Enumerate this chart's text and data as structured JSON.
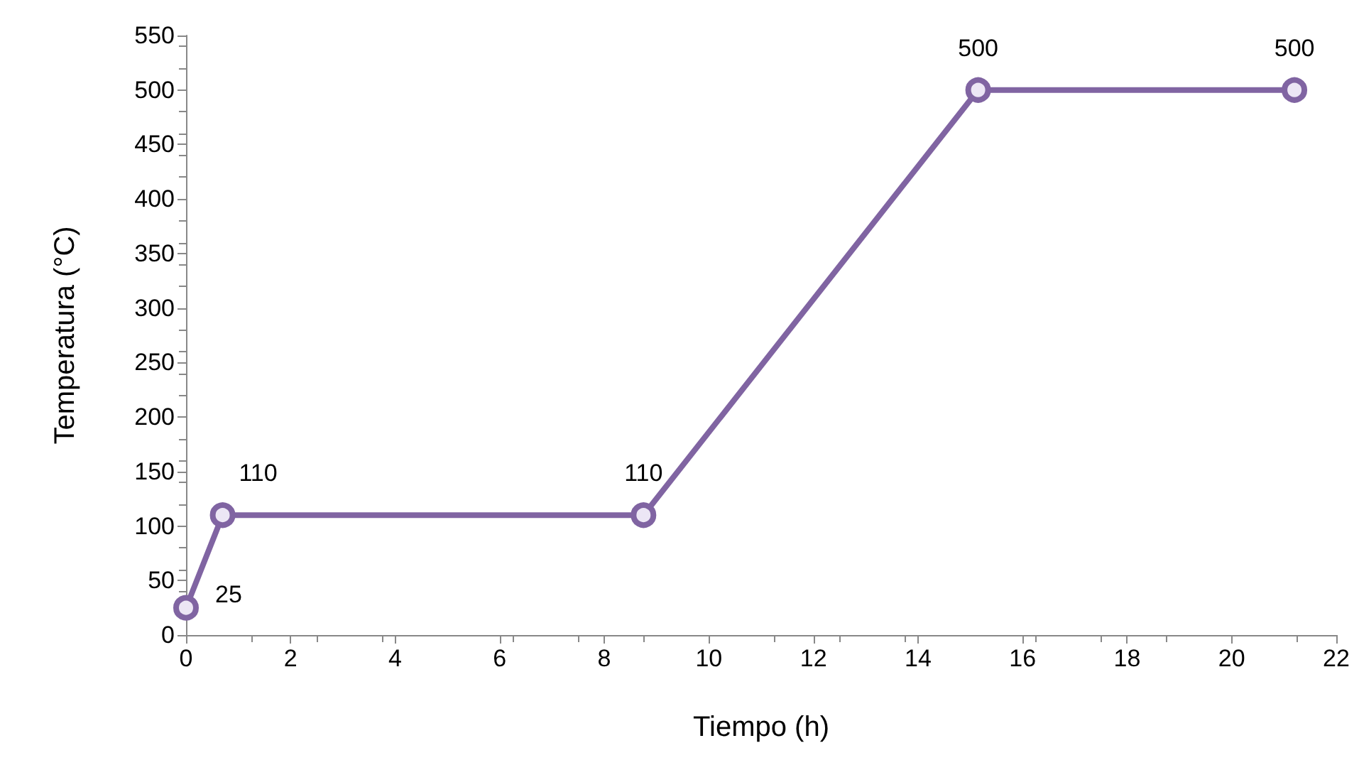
{
  "chart_data": {
    "type": "line",
    "xlabel": "Tiempo (h)",
    "ylabel": "Temperatura (°C)",
    "x": [
      0,
      0.7,
      8.75,
      15.15,
      21.2
    ],
    "series": [
      {
        "color": "#8064a2",
        "values": [
          25,
          110,
          110,
          500,
          500
        ]
      }
    ],
    "xlim": [
      0,
      22
    ],
    "xticks": [
      0,
      2,
      4,
      6,
      8,
      10,
      12,
      14,
      16,
      18,
      20,
      22
    ],
    "ylim": [
      0,
      550
    ],
    "yticks": [
      0,
      50,
      100,
      150,
      200,
      250,
      300,
      350,
      400,
      450,
      500,
      550
    ],
    "data_labels": true,
    "marker": "circle",
    "line_style": "solid"
  }
}
